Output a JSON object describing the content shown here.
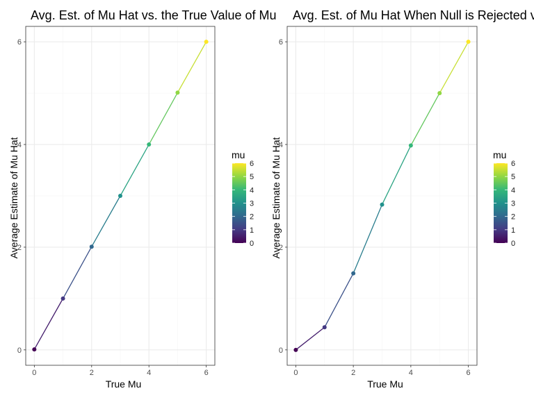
{
  "chart_data": [
    {
      "type": "line",
      "title": "Avg. Est. of Mu Hat vs. the True Value of Mu",
      "xlabel": "True Mu",
      "ylabel": "Average Estimate of Mu Hat",
      "xlim": [
        -0.3,
        6.3
      ],
      "ylim": [
        -0.3,
        6.3
      ],
      "xticks": [
        0,
        2,
        4,
        6
      ],
      "yticks": [
        0,
        2,
        4,
        6
      ],
      "grid": true,
      "points_colored_by": "mu",
      "x": [
        0,
        1,
        2,
        3,
        4,
        5,
        6
      ],
      "y": [
        0.01,
        1.0,
        2.01,
        3.0,
        4.0,
        5.01,
        6.0
      ],
      "legend": {
        "title": "mu",
        "breaks": [
          0,
          1,
          2,
          3,
          4,
          5,
          6
        ],
        "placement": "right"
      }
    },
    {
      "type": "line",
      "title": "Avg. Est. of Mu Hat When Null is Rejected vs. True Value of Mu",
      "xlabel": "True Mu",
      "ylabel": "Average Estimate of Mu Hat",
      "xlim": [
        -0.3,
        6.3
      ],
      "ylim": [
        -0.3,
        6.3
      ],
      "xticks": [
        0,
        2,
        4,
        6
      ],
      "yticks": [
        0,
        2,
        4,
        6
      ],
      "grid": true,
      "points_colored_by": "mu",
      "x": [
        0,
        1,
        2,
        3,
        4,
        5,
        6
      ],
      "y": [
        0.0,
        0.44,
        1.49,
        2.83,
        3.98,
        5.0,
        6.0
      ],
      "legend": {
        "title": "mu",
        "breaks": [
          0,
          1,
          2,
          3,
          4,
          5,
          6
        ],
        "placement": "right"
      }
    }
  ],
  "colors": {
    "viridis": [
      "#440154",
      "#443983",
      "#31688e",
      "#21918c",
      "#35b779",
      "#90d743",
      "#fde725"
    ],
    "grid_major": "#ebebeb",
    "grid_minor": "#f5f5f5",
    "panel_border": "#333333",
    "tick_text": "#4d4d4d"
  }
}
